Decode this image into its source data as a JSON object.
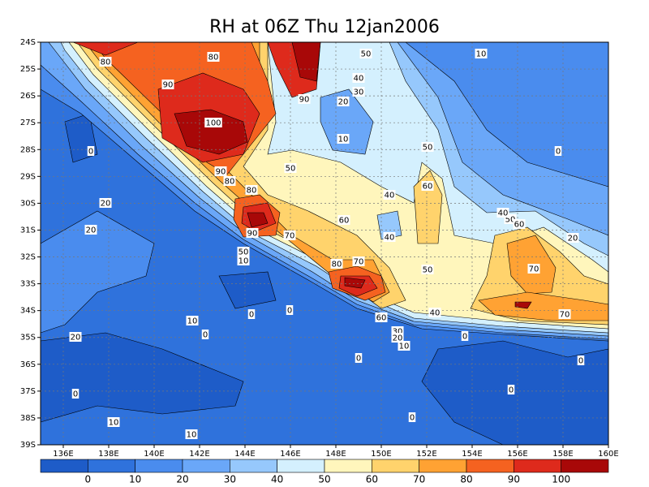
{
  "chart_data": {
    "type": "contour",
    "title": "RH at 06Z Thu 12jan2006",
    "xlim": [
      135,
      160
    ],
    "xticks": [
      {
        "value": 136,
        "label": "136E"
      },
      {
        "value": 138,
        "label": "138E"
      },
      {
        "value": 140,
        "label": "140E"
      },
      {
        "value": 142,
        "label": "142E"
      },
      {
        "value": 144,
        "label": "144E"
      },
      {
        "value": 146,
        "label": "146E"
      },
      {
        "value": 148,
        "label": "148E"
      },
      {
        "value": 150,
        "label": "150E"
      },
      {
        "value": 152,
        "label": "152E"
      },
      {
        "value": 154,
        "label": "154E"
      },
      {
        "value": 156,
        "label": "156E"
      },
      {
        "value": 158,
        "label": "158E"
      },
      {
        "value": 160,
        "label": "160E"
      }
    ],
    "ylim": [
      -39,
      -24
    ],
    "yticks": [
      {
        "value": -24,
        "label": "24S"
      },
      {
        "value": -25,
        "label": "25S"
      },
      {
        "value": -26,
        "label": "26S"
      },
      {
        "value": -27,
        "label": "27S"
      },
      {
        "value": -28,
        "label": "28S"
      },
      {
        "value": -29,
        "label": "29S"
      },
      {
        "value": -30,
        "label": "30S"
      },
      {
        "value": -31,
        "label": "31S"
      },
      {
        "value": -32,
        "label": "32S"
      },
      {
        "value": -33,
        "label": "33S"
      },
      {
        "value": -34,
        "label": "34S"
      },
      {
        "value": -35,
        "label": "35S"
      },
      {
        "value": -36,
        "label": "36S"
      },
      {
        "value": -37,
        "label": "37S"
      },
      {
        "value": -38,
        "label": "38S"
      },
      {
        "value": -39,
        "label": "39S"
      }
    ],
    "grid": true,
    "colorbar": {
      "levels": [
        0,
        10,
        20,
        30,
        40,
        50,
        60,
        70,
        80,
        90,
        100
      ],
      "colors": [
        "#1e5cc8",
        "#2f72dc",
        "#4a8cee",
        "#6aa7f8",
        "#96c8fc",
        "#d4f0fe",
        "#fff6bc",
        "#ffd36c",
        "#ffa233",
        "#f56220",
        "#de2a1c",
        "#a80808"
      ]
    },
    "contour_labels": [
      80,
      80,
      90,
      100,
      90,
      80,
      80,
      90,
      90,
      50,
      40,
      30,
      20,
      10,
      50,
      40,
      50,
      60,
      60,
      40,
      70,
      50,
      10,
      80,
      70,
      50,
      40,
      60,
      30,
      20,
      10,
      10,
      0,
      0,
      20,
      20,
      10,
      0,
      0,
      0,
      20,
      0,
      0,
      50,
      40,
      60,
      70,
      70,
      20,
      0,
      0,
      0,
      10,
      10,
      0
    ]
  }
}
